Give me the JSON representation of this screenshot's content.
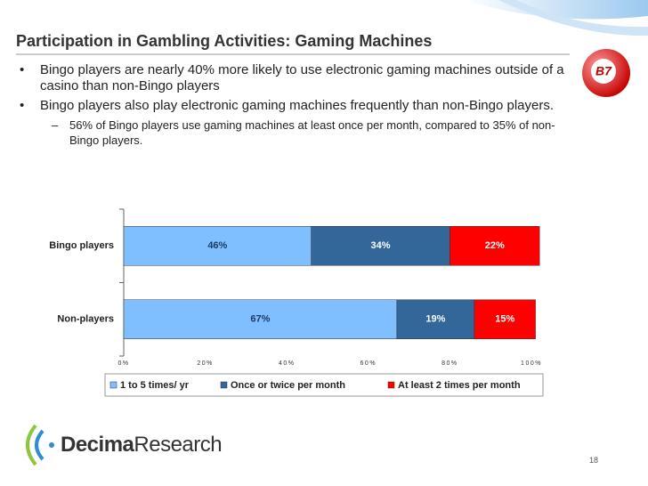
{
  "title": "Participation in Gambling Activities: Gaming Machines",
  "bullets": [
    {
      "text": "Bingo players are nearly 40% more likely to use electronic gaming machines outside of a casino than non-Bingo players",
      "subs": []
    },
    {
      "text": "Bingo players also play electronic gaming machines frequently than non-Bingo players.",
      "subs": [
        "56% of Bingo players use gaming machines at least once per month, compared to 35% of non-Bingo players."
      ]
    }
  ],
  "ball_label": "B7",
  "logo": {
    "name": "Decima",
    "suffix": "Research"
  },
  "page_number": "18",
  "chart_data": {
    "type": "stacked_bar_horizontal",
    "categories": [
      "Bingo players",
      "Non-players"
    ],
    "series": [
      {
        "name": "1 to 5 times/ yr",
        "color": "#80bfff",
        "values": [
          46,
          67
        ],
        "value_labels": [
          "46%",
          "67%"
        ]
      },
      {
        "name": "Once or twice per month",
        "color": "#336699",
        "values": [
          34,
          19
        ],
        "value_labels": [
          "34%",
          "19%"
        ]
      },
      {
        "name": "At least 2 times per month",
        "color": "#ff0000",
        "values": [
          22,
          15
        ],
        "value_labels": [
          "22%",
          "15%"
        ]
      }
    ],
    "xlim": [
      0,
      100
    ],
    "xticks": [
      {
        "value": 0,
        "label": "0%"
      },
      {
        "value": 20,
        "label": "20%"
      },
      {
        "value": 40,
        "label": "40%"
      },
      {
        "value": 60,
        "label": "60%"
      },
      {
        "value": 80,
        "label": "80%"
      },
      {
        "value": 100,
        "label": "100%"
      }
    ],
    "legend": "bottom"
  }
}
